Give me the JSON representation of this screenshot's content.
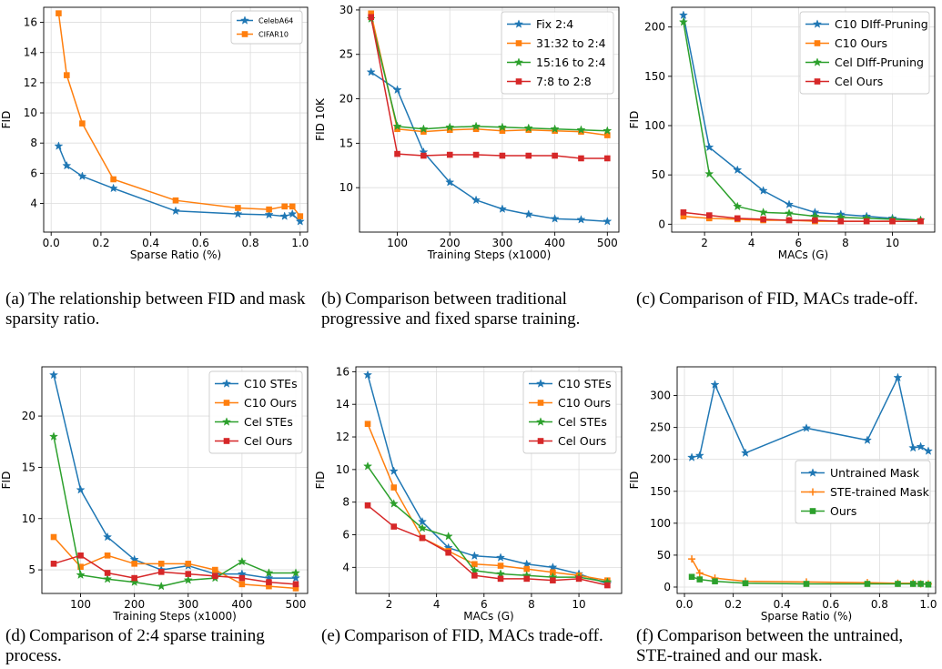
{
  "colors": {
    "blue": "#1f77b4",
    "orange": "#ff7f0e",
    "green": "#2ca02c",
    "red": "#d62728",
    "grid": "#dddddd"
  },
  "captions": [
    {
      "label": "(a)",
      "text": "The relationship between FID and mask sparsity ratio."
    },
    {
      "label": "(b)",
      "text": "Comparison between traditional progressive and fixed sparse training."
    },
    {
      "label": "(c)",
      "text": "Comparison of FID, MACs trade-off."
    },
    {
      "label": "(d)",
      "text": "Comparison of 2:4 sparse training process."
    },
    {
      "label": "(e)",
      "text": "Comparison of FID, MACs trade-off."
    },
    {
      "label": "(f)",
      "text": "Comparison between the untrained, STE-trained and our mask."
    }
  ],
  "chart_data": [
    {
      "type": "line",
      "xlabel": "Sparse Ratio (%)",
      "ylabel": "FID",
      "xlim": [
        -0.03,
        1.03
      ],
      "ylim": [
        2.1,
        17.0
      ],
      "xticks": [
        0.0,
        0.2,
        0.4,
        0.6,
        0.8,
        1.0
      ],
      "xticklabels": [
        "0.0",
        "0.2",
        "0.4",
        "0.6",
        "0.8",
        "1.0"
      ],
      "yticks": [
        4,
        6,
        8,
        10,
        12,
        14,
        16
      ],
      "yticklabels": [
        "4",
        "6",
        "8",
        "10",
        "12",
        "14",
        "16"
      ],
      "grid": true,
      "legend": "top-right",
      "series": [
        {
          "name": "CelebA64",
          "color": "blue",
          "marker": "star",
          "x": [
            0.03,
            0.0625,
            0.125,
            0.25,
            0.5,
            0.75,
            0.875,
            0.9375,
            0.96875,
            1.0
          ],
          "y": [
            7.8,
            6.5,
            5.8,
            5.0,
            3.5,
            3.3,
            3.25,
            3.15,
            3.3,
            2.8
          ]
        },
        {
          "name": "CIFAR10",
          "color": "orange",
          "marker": "square",
          "x": [
            0.03,
            0.0625,
            0.125,
            0.25,
            0.5,
            0.75,
            0.875,
            0.9375,
            0.96875,
            1.0
          ],
          "y": [
            16.6,
            12.5,
            9.3,
            5.6,
            4.2,
            3.7,
            3.6,
            3.8,
            3.8,
            3.15
          ]
        }
      ]
    },
    {
      "type": "line",
      "xlabel": "Training Steps (x1000)",
      "ylabel": "FID 10K",
      "xlim": [
        28,
        522
      ],
      "ylim": [
        5.0,
        30.3
      ],
      "xticks": [
        100,
        200,
        300,
        400,
        500
      ],
      "xticklabels": [
        "100",
        "200",
        "300",
        "400",
        "500"
      ],
      "yticks": [
        10,
        15,
        20,
        25,
        30
      ],
      "yticklabels": [
        "10",
        "15",
        "20",
        "25",
        "30"
      ],
      "grid": true,
      "legend": "top-right",
      "series": [
        {
          "name": "Fix 2:4",
          "color": "blue",
          "marker": "star",
          "x": [
            50,
            100,
            150,
            200,
            250,
            300,
            350,
            400,
            450,
            500
          ],
          "y": [
            23.0,
            21.0,
            14.0,
            10.6,
            8.6,
            7.6,
            7.0,
            6.5,
            6.4,
            6.2
          ]
        },
        {
          "name": "31:32 to 2:4",
          "color": "orange",
          "marker": "square",
          "x": [
            50,
            100,
            150,
            200,
            250,
            300,
            350,
            400,
            450,
            500
          ],
          "y": [
            29.6,
            16.6,
            16.3,
            16.5,
            16.6,
            16.4,
            16.5,
            16.4,
            16.3,
            15.9
          ]
        },
        {
          "name": "15:16 to 2:4",
          "color": "green",
          "marker": "star",
          "x": [
            50,
            100,
            150,
            200,
            250,
            300,
            350,
            400,
            450,
            500
          ],
          "y": [
            29.0,
            16.9,
            16.6,
            16.8,
            16.9,
            16.8,
            16.7,
            16.6,
            16.5,
            16.4
          ]
        },
        {
          "name": "7:8 to 2:8",
          "color": "red",
          "marker": "square",
          "x": [
            50,
            100,
            150,
            200,
            250,
            300,
            350,
            400,
            450,
            500
          ],
          "y": [
            29.2,
            13.8,
            13.6,
            13.7,
            13.7,
            13.6,
            13.6,
            13.6,
            13.3,
            13.3
          ]
        }
      ]
    },
    {
      "type": "line",
      "xlabel": "MACs (G)",
      "ylabel": "FID",
      "xlim": [
        0.6,
        11.8
      ],
      "ylim": [
        -8,
        220
      ],
      "xticks": [
        2,
        4,
        6,
        8,
        10
      ],
      "xticklabels": [
        "2",
        "4",
        "6",
        "8",
        "10"
      ],
      "yticks": [
        0,
        50,
        100,
        150,
        200
      ],
      "yticklabels": [
        "0",
        "50",
        "100",
        "150",
        "200"
      ],
      "grid": true,
      "legend": "top-right",
      "series": [
        {
          "name": "C10  DIff-Pruning",
          "color": "blue",
          "marker": "star",
          "x": [
            1.1,
            2.2,
            3.4,
            4.5,
            5.6,
            6.7,
            7.8,
            8.9,
            10.0,
            11.2
          ],
          "y": [
            212,
            78,
            55,
            34,
            20,
            12,
            10,
            8,
            6,
            4
          ]
        },
        {
          "name": "C10  Ours",
          "color": "orange",
          "marker": "square",
          "x": [
            1.1,
            2.2,
            3.4,
            4.5,
            5.6,
            6.7,
            7.8,
            8.9,
            10.0,
            11.2
          ],
          "y": [
            8,
            6,
            5,
            4,
            4,
            3,
            3,
            3,
            3,
            3
          ]
        },
        {
          "name": "Cel  DIff-Pruning",
          "color": "green",
          "marker": "star",
          "x": [
            1.1,
            2.2,
            3.4,
            4.5,
            5.6,
            6.7,
            7.8,
            8.9,
            10.0,
            11.2
          ],
          "y": [
            205,
            51,
            18,
            12,
            11,
            8,
            7,
            6,
            5,
            4
          ]
        },
        {
          "name": "Cel  Ours",
          "color": "red",
          "marker": "square",
          "x": [
            1.1,
            2.2,
            3.4,
            4.5,
            5.6,
            6.7,
            7.8,
            8.9,
            10.0,
            11.2
          ],
          "y": [
            12,
            9,
            6,
            5,
            4,
            4,
            3,
            3,
            3,
            3
          ]
        }
      ]
    },
    {
      "type": "line",
      "xlabel": "Training Steps (x1000)",
      "ylabel": "FID",
      "xlim": [
        28,
        522
      ],
      "ylim": [
        2.7,
        24.8
      ],
      "xticks": [
        100,
        200,
        300,
        400,
        500
      ],
      "xticklabels": [
        "100",
        "200",
        "300",
        "400",
        "500"
      ],
      "yticks": [
        5,
        10,
        15,
        20
      ],
      "yticklabels": [
        "5",
        "10",
        "15",
        "20"
      ],
      "grid": true,
      "legend": "top-right",
      "series": [
        {
          "name": "C10 STEs",
          "color": "blue",
          "marker": "star",
          "x": [
            50,
            100,
            150,
            200,
            250,
            300,
            350,
            400,
            450,
            500
          ],
          "y": [
            24.0,
            12.8,
            8.2,
            6.0,
            5.0,
            5.4,
            4.6,
            4.6,
            4.2,
            4.2
          ]
        },
        {
          "name": "C10 Ours",
          "color": "orange",
          "marker": "square",
          "x": [
            50,
            100,
            150,
            200,
            250,
            300,
            350,
            400,
            450,
            500
          ],
          "y": [
            8.2,
            5.3,
            6.4,
            5.6,
            5.6,
            5.6,
            5.0,
            3.6,
            3.4,
            3.2
          ]
        },
        {
          "name": "Cel STEs",
          "color": "green",
          "marker": "star",
          "x": [
            50,
            100,
            150,
            200,
            250,
            300,
            350,
            400,
            450,
            500
          ],
          "y": [
            18.0,
            4.5,
            4.1,
            3.8,
            3.4,
            4.0,
            4.2,
            5.8,
            4.7,
            4.7
          ]
        },
        {
          "name": "Cel Ours",
          "color": "red",
          "marker": "square",
          "x": [
            50,
            100,
            150,
            200,
            250,
            300,
            350,
            400,
            450,
            500
          ],
          "y": [
            5.6,
            6.4,
            4.7,
            4.2,
            4.8,
            4.6,
            4.4,
            4.2,
            3.8,
            3.6
          ]
        }
      ]
    },
    {
      "type": "line",
      "xlabel": "MACs (G)",
      "ylabel": "FID",
      "xlim": [
        0.6,
        11.8
      ],
      "ylim": [
        2.4,
        16.3
      ],
      "xticks": [
        2,
        4,
        6,
        8,
        10
      ],
      "xticklabels": [
        "2",
        "4",
        "6",
        "8",
        "10"
      ],
      "yticks": [
        4,
        6,
        8,
        10,
        12,
        14,
        16
      ],
      "yticklabels": [
        "4",
        "6",
        "8",
        "10",
        "12",
        "14",
        "16"
      ],
      "grid": true,
      "legend": "top-right",
      "series": [
        {
          "name": "C10 STEs",
          "color": "blue",
          "marker": "star",
          "x": [
            1.1,
            2.2,
            3.4,
            4.5,
            5.6,
            6.7,
            7.8,
            8.9,
            10.0,
            11.2
          ],
          "y": [
            15.8,
            9.9,
            6.8,
            5.2,
            4.7,
            4.6,
            4.2,
            4.0,
            3.6,
            3.0
          ]
        },
        {
          "name": "C10 Ours",
          "color": "orange",
          "marker": "square",
          "x": [
            1.1,
            2.2,
            3.4,
            4.5,
            5.6,
            6.7,
            7.8,
            8.9,
            10.0,
            11.2
          ],
          "y": [
            12.8,
            8.9,
            5.8,
            5.0,
            4.2,
            4.1,
            3.9,
            3.7,
            3.5,
            3.2
          ]
        },
        {
          "name": "Cel STEs",
          "color": "green",
          "marker": "star",
          "x": [
            1.1,
            2.2,
            3.4,
            4.5,
            5.6,
            6.7,
            7.8,
            8.9,
            10.0,
            11.2
          ],
          "y": [
            10.2,
            7.9,
            6.4,
            5.9,
            3.8,
            3.6,
            3.5,
            3.4,
            3.4,
            3.1
          ]
        },
        {
          "name": "Cel Ours",
          "color": "red",
          "marker": "square",
          "x": [
            1.1,
            2.2,
            3.4,
            4.5,
            5.6,
            6.7,
            7.8,
            8.9,
            10.0,
            11.2
          ],
          "y": [
            7.8,
            6.5,
            5.8,
            4.9,
            3.5,
            3.3,
            3.3,
            3.2,
            3.3,
            2.9
          ]
        }
      ]
    },
    {
      "type": "line",
      "xlabel": "Sparse Ratio (%)",
      "ylabel": "FID",
      "xlim": [
        -0.03,
        1.03
      ],
      "ylim": [
        -10,
        345
      ],
      "xticks": [
        0.0,
        0.2,
        0.4,
        0.6,
        0.8,
        1.0
      ],
      "xticklabels": [
        "0.0",
        "0.2",
        "0.4",
        "0.6",
        "0.8",
        "1.0"
      ],
      "yticks": [
        0,
        50,
        100,
        150,
        200,
        250,
        300
      ],
      "yticklabels": [
        "0",
        "50",
        "100",
        "150",
        "200",
        "250",
        "300"
      ],
      "grid": true,
      "legend": "center-right",
      "series": [
        {
          "name": "Untrained Mask",
          "color": "blue",
          "marker": "star",
          "x": [
            0.03,
            0.0625,
            0.125,
            0.25,
            0.5,
            0.75,
            0.875,
            0.9375,
            0.96875,
            1.0
          ],
          "y": [
            203,
            206,
            317,
            210,
            249,
            230,
            328,
            218,
            220,
            213
          ]
        },
        {
          "name": "STE-trained Mask",
          "color": "orange",
          "marker": "plus",
          "x": [
            0.03,
            0.0625,
            0.125,
            0.25,
            0.5,
            0.75,
            0.875,
            0.9375,
            0.96875,
            1.0
          ],
          "y": [
            44,
            22,
            14,
            9,
            8,
            7,
            6,
            6,
            5,
            5
          ]
        },
        {
          "name": "Ours",
          "color": "green",
          "marker": "square",
          "x": [
            0.03,
            0.0625,
            0.125,
            0.25,
            0.5,
            0.75,
            0.875,
            0.9375,
            0.96875,
            1.0
          ],
          "y": [
            16,
            12,
            9,
            6,
            5,
            5,
            5,
            5,
            5,
            4
          ]
        }
      ]
    }
  ]
}
